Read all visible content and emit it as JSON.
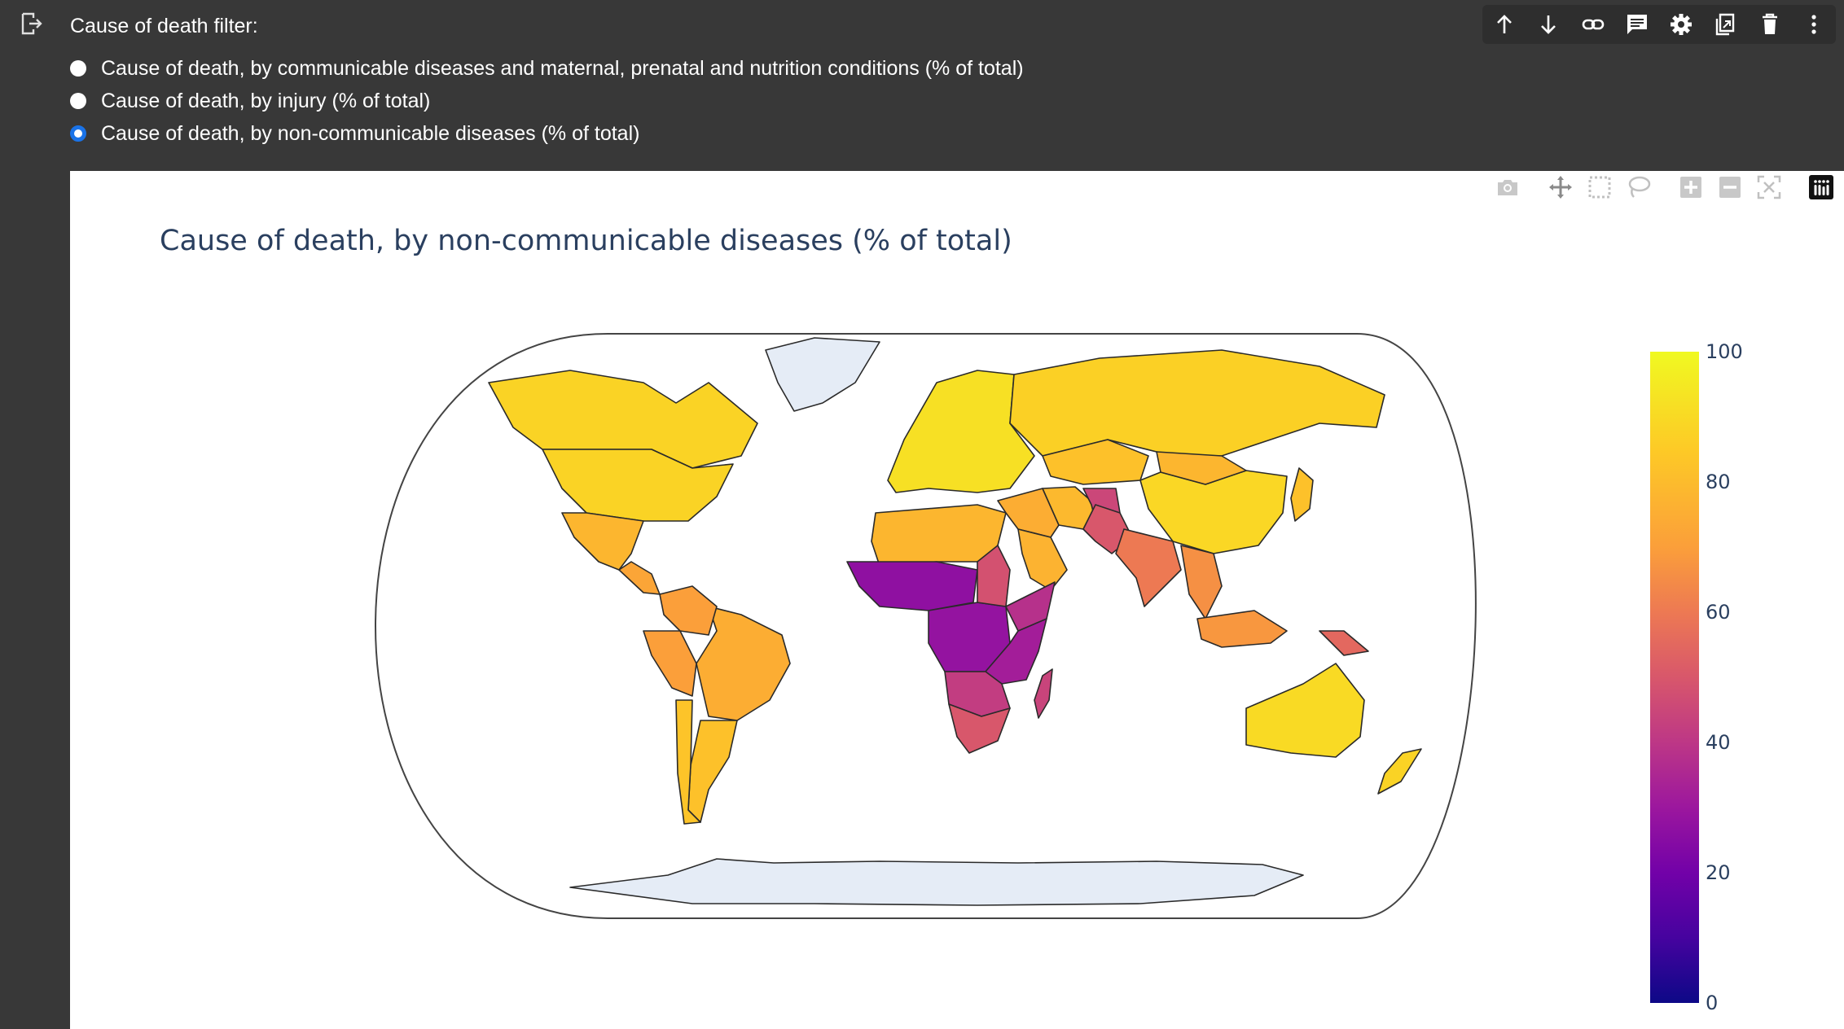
{
  "colors": {
    "background": "#383838",
    "toolbar_bg": "#2e2e2e",
    "radio_selected": "#1a73e8",
    "land_missing": "#e5ecf6"
  },
  "filter": {
    "title": "Cause of death filter:",
    "options": [
      {
        "label": "Cause of death, by communicable diseases and maternal, prenatal and nutrition conditions (% of total)",
        "checked": false
      },
      {
        "label": "Cause of death, by injury (% of total)",
        "checked": false
      },
      {
        "label": "Cause of death, by non-communicable diseases (% of total)",
        "checked": true
      }
    ]
  },
  "toolbar_icons": [
    "arrow-up-icon",
    "arrow-down-icon",
    "link-icon",
    "comment-icon",
    "gear-icon",
    "mirror-cell-icon",
    "trash-icon",
    "more-vert-icon"
  ],
  "modebar_icons": [
    "camera-icon",
    "pan-icon",
    "box-select-icon",
    "lasso-icon",
    "zoom-in-icon",
    "zoom-out-icon",
    "reset-view-icon",
    "plotly-logo-icon"
  ],
  "chart_data": {
    "type": "choropleth",
    "title": "Cause of death, by non-communicable diseases (% of total)",
    "projection": "natural earth",
    "colorscale": "plasma",
    "colorbar": {
      "min": 0,
      "max": 100,
      "ticks": [
        "0",
        "20",
        "40",
        "60",
        "80",
        "100"
      ]
    },
    "regions": [
      {
        "name": "Canada",
        "value": 88
      },
      {
        "name": "United States",
        "value": 88
      },
      {
        "name": "Mexico",
        "value": 78
      },
      {
        "name": "Central America",
        "value": 72
      },
      {
        "name": "Brazil",
        "value": 75
      },
      {
        "name": "Argentina",
        "value": 82
      },
      {
        "name": "Chile",
        "value": 83
      },
      {
        "name": "Peru",
        "value": 70
      },
      {
        "name": "Colombia",
        "value": 70
      },
      {
        "name": "Greenland",
        "value": null
      },
      {
        "name": "Europe",
        "value": 92
      },
      {
        "name": "Russia",
        "value": 87
      },
      {
        "name": "China",
        "value": 89
      },
      {
        "name": "Mongolia",
        "value": 78
      },
      {
        "name": "Kazakhstan",
        "value": 82
      },
      {
        "name": "North Africa",
        "value": 78
      },
      {
        "name": "Middle East",
        "value": 75
      },
      {
        "name": "Saudi Arabia",
        "value": 77
      },
      {
        "name": "Iran",
        "value": 79
      },
      {
        "name": "Afghanistan",
        "value": 45
      },
      {
        "name": "Pakistan",
        "value": 50
      },
      {
        "name": "India",
        "value": 60
      },
      {
        "name": "Southeast Asia",
        "value": 66
      },
      {
        "name": "Indonesia",
        "value": 68
      },
      {
        "name": "Papua New Guinea",
        "value": 55
      },
      {
        "name": "Japan",
        "value": 82
      },
      {
        "name": "Australia",
        "value": 90
      },
      {
        "name": "New Zealand",
        "value": 88
      },
      {
        "name": "Sahel / West Africa",
        "value": 27
      },
      {
        "name": "Central Africa",
        "value": 28
      },
      {
        "name": "East Africa",
        "value": 32
      },
      {
        "name": "Sudan",
        "value": 48
      },
      {
        "name": "Ethiopia",
        "value": 38
      },
      {
        "name": "Southern Africa",
        "value": 42
      },
      {
        "name": "South Africa",
        "value": 50
      },
      {
        "name": "Madagascar",
        "value": 44
      },
      {
        "name": "Antarctica",
        "value": null
      }
    ]
  }
}
